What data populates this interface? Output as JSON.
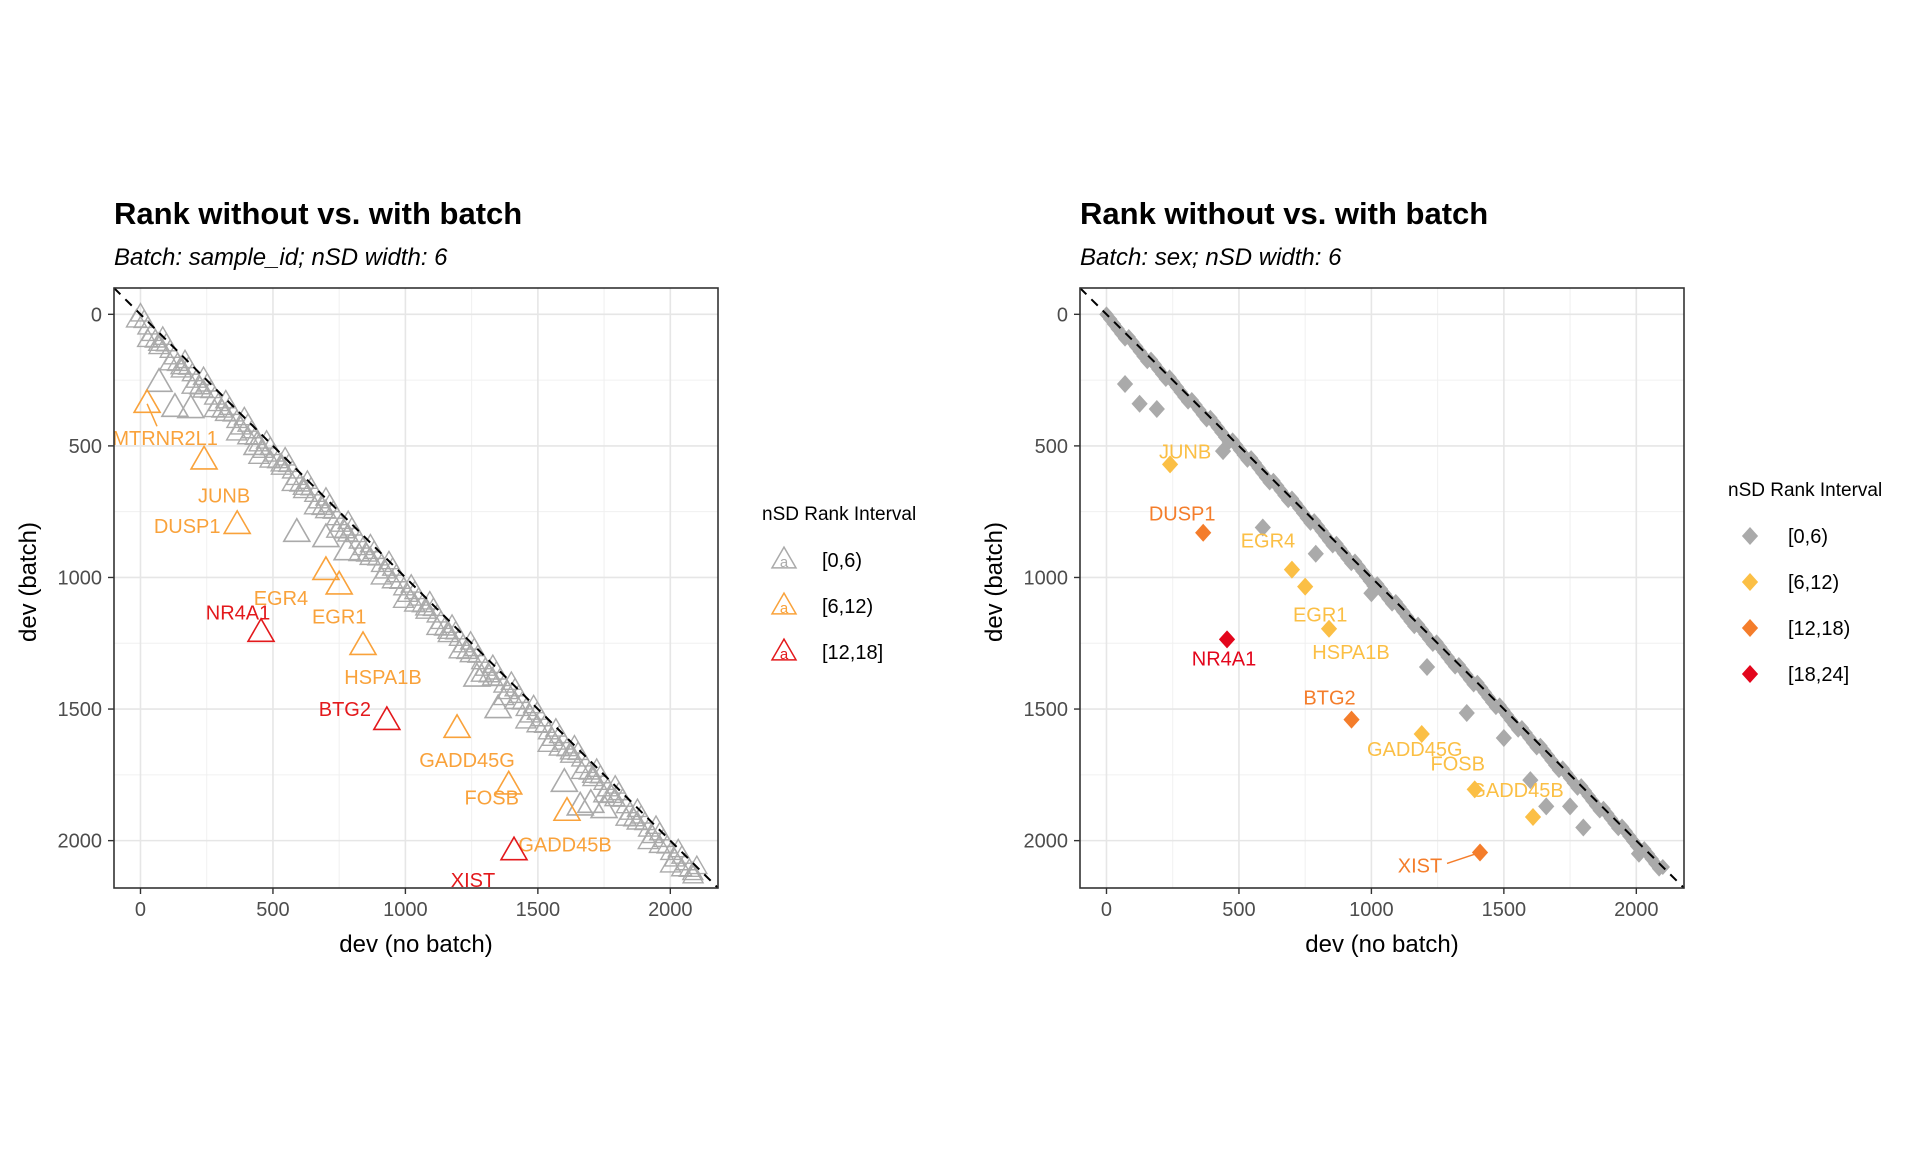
{
  "chart_data": [
    {
      "type": "scatter",
      "id": "left",
      "title": "Rank without vs. with batch",
      "subtitle": "Batch: sample_id; nSD width: 6",
      "xlabel": "dev (no batch)",
      "ylabel": "dev (batch)",
      "xlim": [
        -100,
        2180
      ],
      "ylim": [
        -100,
        2180
      ],
      "y_reversed": true,
      "x_ticks": [
        0,
        500,
        1000,
        1500,
        2000
      ],
      "y_ticks": [
        0,
        500,
        1000,
        1500,
        2000
      ],
      "marker": "triangle-open",
      "reference_line": "y = x (dashed)",
      "legend": {
        "title": "nSD Rank Interval",
        "position": "right",
        "entries": [
          {
            "label": "[0,6)",
            "color": "#aaaaaa"
          },
          {
            "label": "[6,12)",
            "color": "#f9a23b"
          },
          {
            "label": "[12,18]",
            "color": "#e3191c"
          }
        ]
      },
      "gray_band": {
        "x_start": 0,
        "x_end": 2100,
        "offset_min": 0,
        "offset_max": 60,
        "interval": "[0,6)"
      },
      "points": [
        {
          "x": 70,
          "y": 260,
          "interval": "[0,6)"
        },
        {
          "x": 130,
          "y": 355,
          "interval": "[0,6)"
        },
        {
          "x": 190,
          "y": 360,
          "interval": "[0,6)"
        },
        {
          "x": 440,
          "y": 500,
          "interval": "[0,6)"
        },
        {
          "x": 590,
          "y": 830,
          "interval": "[0,6)"
        },
        {
          "x": 700,
          "y": 850,
          "interval": "[0,6)"
        },
        {
          "x": 780,
          "y": 900,
          "interval": "[0,6)"
        },
        {
          "x": 1270,
          "y": 1380,
          "interval": "[0,6)"
        },
        {
          "x": 1350,
          "y": 1500,
          "interval": "[0,6)"
        },
        {
          "x": 1600,
          "y": 1780,
          "interval": "[0,6)"
        },
        {
          "x": 1660,
          "y": 1870,
          "interval": "[0,6)"
        },
        {
          "x": 1700,
          "y": 1860,
          "interval": "[0,6)"
        },
        {
          "x": 1750,
          "y": 1880,
          "interval": "[0,6)"
        },
        {
          "x": 25,
          "y": 340,
          "interval": "[6,12)",
          "label": "MTRNR2L1"
        },
        {
          "x": 240,
          "y": 555,
          "interval": "[6,12)",
          "label": "JUNB"
        },
        {
          "x": 365,
          "y": 800,
          "interval": "[6,12)",
          "label": "DUSP1"
        },
        {
          "x": 700,
          "y": 975,
          "interval": "[6,12)",
          "label": "EGR4"
        },
        {
          "x": 750,
          "y": 1030,
          "interval": "[6,12)",
          "label": "EGR1"
        },
        {
          "x": 840,
          "y": 1260,
          "interval": "[6,12)",
          "label": "HSPA1B"
        },
        {
          "x": 1195,
          "y": 1575,
          "interval": "[6,12)",
          "label": "GADD45G"
        },
        {
          "x": 1390,
          "y": 1790,
          "interval": "[6,12)",
          "label": "FOSB"
        },
        {
          "x": 1610,
          "y": 1890,
          "interval": "[6,12)",
          "label": "GADD45B"
        },
        {
          "x": 455,
          "y": 1210,
          "interval": "[12,18]",
          "label": "NR4A1"
        },
        {
          "x": 930,
          "y": 1545,
          "interval": "[12,18]",
          "label": "BTG2"
        },
        {
          "x": 1410,
          "y": 2040,
          "interval": "[12,18]",
          "label": "XIST"
        }
      ]
    },
    {
      "type": "scatter",
      "id": "right",
      "title": "Rank without vs. with batch",
      "subtitle": "Batch: sex; nSD width: 6",
      "xlabel": "dev (no batch)",
      "ylabel": "dev (batch)",
      "xlim": [
        -100,
        2180
      ],
      "ylim": [
        -100,
        2180
      ],
      "y_reversed": true,
      "x_ticks": [
        0,
        500,
        1000,
        1500,
        2000
      ],
      "y_ticks": [
        0,
        500,
        1000,
        1500,
        2000
      ],
      "marker": "diamond-filled",
      "reference_line": "y = x (dashed)",
      "legend": {
        "title": "nSD Rank Interval",
        "position": "right",
        "entries": [
          {
            "label": "[0,6)",
            "color": "#aaaaaa"
          },
          {
            "label": "[6,12)",
            "color": "#fbbf45"
          },
          {
            "label": "[12,18)",
            "color": "#f47d2b"
          },
          {
            "label": "[18,24]",
            "color": "#e3061c"
          }
        ]
      },
      "gray_band": {
        "x_start": 0,
        "x_end": 2100,
        "offset_min": 0,
        "offset_max": 25,
        "interval": "[0,6)"
      },
      "points": [
        {
          "x": 70,
          "y": 265,
          "interval": "[0,6)"
        },
        {
          "x": 125,
          "y": 340,
          "interval": "[0,6)"
        },
        {
          "x": 190,
          "y": 360,
          "interval": "[0,6)"
        },
        {
          "x": 440,
          "y": 520,
          "interval": "[0,6)"
        },
        {
          "x": 590,
          "y": 810,
          "interval": "[0,6)"
        },
        {
          "x": 790,
          "y": 910,
          "interval": "[0,6)"
        },
        {
          "x": 1000,
          "y": 1060,
          "interval": "[0,6)"
        },
        {
          "x": 1210,
          "y": 1340,
          "interval": "[0,6)"
        },
        {
          "x": 1360,
          "y": 1515,
          "interval": "[0,6)"
        },
        {
          "x": 1500,
          "y": 1610,
          "interval": "[0,6)"
        },
        {
          "x": 1600,
          "y": 1770,
          "interval": "[0,6)"
        },
        {
          "x": 1660,
          "y": 1870,
          "interval": "[0,6)"
        },
        {
          "x": 1750,
          "y": 1870,
          "interval": "[0,6)"
        },
        {
          "x": 1800,
          "y": 1950,
          "interval": "[0,6)"
        },
        {
          "x": 2010,
          "y": 2050,
          "interval": "[0,6)"
        },
        {
          "x": 240,
          "y": 570,
          "interval": "[6,12)",
          "label": "JUNB"
        },
        {
          "x": 700,
          "y": 970,
          "interval": "[6,12)",
          "label": "EGR4"
        },
        {
          "x": 750,
          "y": 1035,
          "interval": "[6,12)",
          "label": "EGR1"
        },
        {
          "x": 840,
          "y": 1195,
          "interval": "[6,12)",
          "label": "HSPA1B"
        },
        {
          "x": 1190,
          "y": 1595,
          "interval": "[6,12)",
          "label": "GADD45G"
        },
        {
          "x": 1390,
          "y": 1805,
          "interval": "[6,12)",
          "label": "FOSB"
        },
        {
          "x": 1610,
          "y": 1910,
          "interval": "[6,12)",
          "label": "GADD45B"
        },
        {
          "x": 365,
          "y": 830,
          "interval": "[12,18)",
          "label": "DUSP1"
        },
        {
          "x": 925,
          "y": 1540,
          "interval": "[12,18)",
          "label": "BTG2"
        },
        {
          "x": 1410,
          "y": 2045,
          "interval": "[12,18)",
          "label": "XIST"
        },
        {
          "x": 455,
          "y": 1235,
          "interval": "[18,24]",
          "label": "NR4A1"
        }
      ]
    }
  ]
}
